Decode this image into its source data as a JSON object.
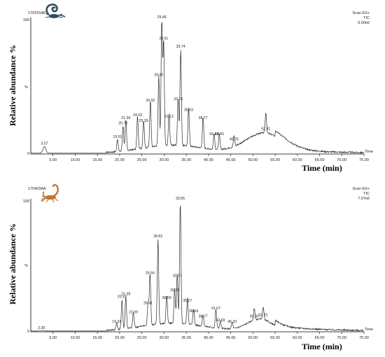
{
  "chart_data": [
    {
      "type": "line",
      "sample_id": "170315AE",
      "header_right": [
        "Scan ES+",
        "TIC",
        "9.00e6"
      ],
      "ylabel": "Relative abundance %",
      "xlabel": "Time (min)",
      "x_axis_label": "Time",
      "y_axis_marks": [
        "100",
        "%",
        "0"
      ],
      "xlim": [
        0,
        75
      ],
      "ylim": [
        0,
        100
      ],
      "x_ticks": [
        "5.00",
        "10.00",
        "15.00",
        "20.00",
        "25.00",
        "30.00",
        "35.00",
        "40.00",
        "45.00",
        "50.00",
        "55.00",
        "60.00",
        "65.00",
        "70.00",
        "75.00"
      ],
      "grid": false,
      "peaks": [
        {
          "label": "3.07",
          "x": 3.07,
          "y": 6
        },
        {
          "label": "19.51",
          "x": 19.51,
          "y": 11
        },
        {
          "label": "20.76",
          "x": 20.76,
          "y": 21
        },
        {
          "label": "21.39",
          "x": 21.39,
          "y": 25
        },
        {
          "label": "24.03",
          "x": 24.03,
          "y": 27
        },
        {
          "label": "25.39",
          "x": 25.39,
          "y": 23
        },
        {
          "label": "26.92",
          "x": 26.92,
          "y": 38
        },
        {
          "label": "28.80",
          "x": 28.8,
          "y": 57
        },
        {
          "label": "29.48",
          "x": 29.48,
          "y": 100
        },
        {
          "label": "29.91",
          "x": 29.91,
          "y": 84
        },
        {
          "label": "31.12",
          "x": 31.12,
          "y": 26
        },
        {
          "label": "33.16",
          "x": 33.16,
          "y": 39
        },
        {
          "label": "33.74",
          "x": 33.74,
          "y": 78
        },
        {
          "label": "35.53",
          "x": 35.53,
          "y": 31
        },
        {
          "label": "38.77",
          "x": 38.77,
          "y": 25
        },
        {
          "label": "41.24",
          "x": 41.24,
          "y": 13
        },
        {
          "label": "42.43",
          "x": 42.43,
          "y": 13
        },
        {
          "label": "45.75",
          "x": 45.75,
          "y": 9
        },
        {
          "label": "52.91",
          "x": 52.91,
          "y": 17
        }
      ]
    },
    {
      "type": "line",
      "sample_id": "170403AA",
      "header_right": [
        "Scan ES+",
        "TIC",
        "7.07e6"
      ],
      "ylabel": "Relative abundance %",
      "xlabel": "Time (min)",
      "x_axis_label": "Time",
      "y_axis_marks": [
        "100",
        "%",
        "0"
      ],
      "xlim": [
        0,
        75
      ],
      "ylim": [
        0,
        100
      ],
      "x_ticks": [
        "5.00",
        "10.00",
        "15.00",
        "20.00",
        "25.00",
        "30.00",
        "35.00",
        "40.00",
        "45.00",
        "50.00",
        "55.00",
        "60.00",
        "65.00",
        "70.00",
        "75.00"
      ],
      "grid": false,
      "peaks": [
        {
          "label": "2.39",
          "x": 2.39,
          "y": 1
        },
        {
          "label": "19.34",
          "x": 19.34,
          "y": 6
        },
        {
          "label": "20.53",
          "x": 20.53,
          "y": 25
        },
        {
          "label": "21.39",
          "x": 21.39,
          "y": 27
        },
        {
          "label": "23.09",
          "x": 23.09,
          "y": 13
        },
        {
          "label": "26.41",
          "x": 26.41,
          "y": 20
        },
        {
          "label": "26.84",
          "x": 26.84,
          "y": 43
        },
        {
          "label": "28.63",
          "x": 28.63,
          "y": 71
        },
        {
          "label": "30.59",
          "x": 30.59,
          "y": 24
        },
        {
          "label": "32.38",
          "x": 32.38,
          "y": 30
        },
        {
          "label": "32.97",
          "x": 32.97,
          "y": 41
        },
        {
          "label": "33.65",
          "x": 33.65,
          "y": 100
        },
        {
          "label": "35.27",
          "x": 35.27,
          "y": 22
        },
        {
          "label": "36.64",
          "x": 36.64,
          "y": 14
        },
        {
          "label": "38.77",
          "x": 38.77,
          "y": 10
        },
        {
          "label": "41.67",
          "x": 41.67,
          "y": 16
        },
        {
          "label": "42.69",
          "x": 42.69,
          "y": 7
        },
        {
          "label": "45.33",
          "x": 45.33,
          "y": 6
        },
        {
          "label": "50.30",
          "x": 50.3,
          "y": 10
        },
        {
          "label": "52.31",
          "x": 52.31,
          "y": 11
        }
      ]
    }
  ],
  "icons": [
    "scorpion-icon-dark",
    "scorpion-icon-orange"
  ],
  "colors": {
    "trace": "#2b2b2b",
    "axis": "#000000",
    "scorpion_dark": "#2f4f5c",
    "scorpion_orange": "#c1772f"
  }
}
